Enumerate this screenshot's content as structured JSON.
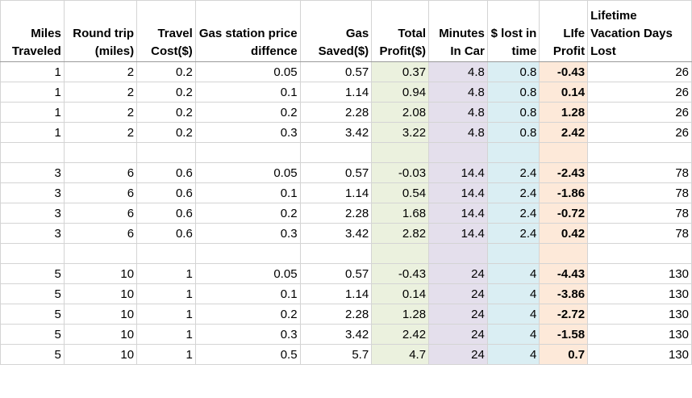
{
  "headers": [
    "Miles Traveled",
    "Round trip (miles)",
    "Travel Cost($)",
    "Gas station price diffence",
    "Gas Saved($)",
    "Total Profit($)",
    "Minutes In Car",
    "$ lost in time",
    "LIfe Profit",
    "Lifetime Vacation Days Lost"
  ],
  "colors": {
    "total_profit_fill": "#ebf1de",
    "minutes_fill": "#e4dfec",
    "lost_fill": "#daeef3",
    "life_profit_fill": "#fde9d9",
    "gridline": "#d4d4d4"
  },
  "rows": [
    [
      "1",
      "2",
      "0.2",
      "0.05",
      "0.57",
      "0.37",
      "4.8",
      "0.8",
      "-0.43",
      "26"
    ],
    [
      "1",
      "2",
      "0.2",
      "0.1",
      "1.14",
      "0.94",
      "4.8",
      "0.8",
      "0.14",
      "26"
    ],
    [
      "1",
      "2",
      "0.2",
      "0.2",
      "2.28",
      "2.08",
      "4.8",
      "0.8",
      "1.28",
      "26"
    ],
    [
      "1",
      "2",
      "0.2",
      "0.3",
      "3.42",
      "3.22",
      "4.8",
      "0.8",
      "2.42",
      "26"
    ],
    [
      "",
      "",
      "",
      "",
      "",
      "",
      "",
      "",
      "",
      ""
    ],
    [
      "3",
      "6",
      "0.6",
      "0.05",
      "0.57",
      "-0.03",
      "14.4",
      "2.4",
      "-2.43",
      "78"
    ],
    [
      "3",
      "6",
      "0.6",
      "0.1",
      "1.14",
      "0.54",
      "14.4",
      "2.4",
      "-1.86",
      "78"
    ],
    [
      "3",
      "6",
      "0.6",
      "0.2",
      "2.28",
      "1.68",
      "14.4",
      "2.4",
      "-0.72",
      "78"
    ],
    [
      "3",
      "6",
      "0.6",
      "0.3",
      "3.42",
      "2.82",
      "14.4",
      "2.4",
      "0.42",
      "78"
    ],
    [
      "",
      "",
      "",
      "",
      "",
      "",
      "",
      "",
      "",
      ""
    ],
    [
      "5",
      "10",
      "1",
      "0.05",
      "0.57",
      "-0.43",
      "24",
      "4",
      "-4.43",
      "130"
    ],
    [
      "5",
      "10",
      "1",
      "0.1",
      "1.14",
      "0.14",
      "24",
      "4",
      "-3.86",
      "130"
    ],
    [
      "5",
      "10",
      "1",
      "0.2",
      "2.28",
      "1.28",
      "24",
      "4",
      "-2.72",
      "130"
    ],
    [
      "5",
      "10",
      "1",
      "0.3",
      "3.42",
      "2.42",
      "24",
      "4",
      "-1.58",
      "130"
    ],
    [
      "5",
      "10",
      "1",
      "0.5",
      "5.7",
      "4.7",
      "24",
      "4",
      "0.7",
      "130"
    ]
  ]
}
